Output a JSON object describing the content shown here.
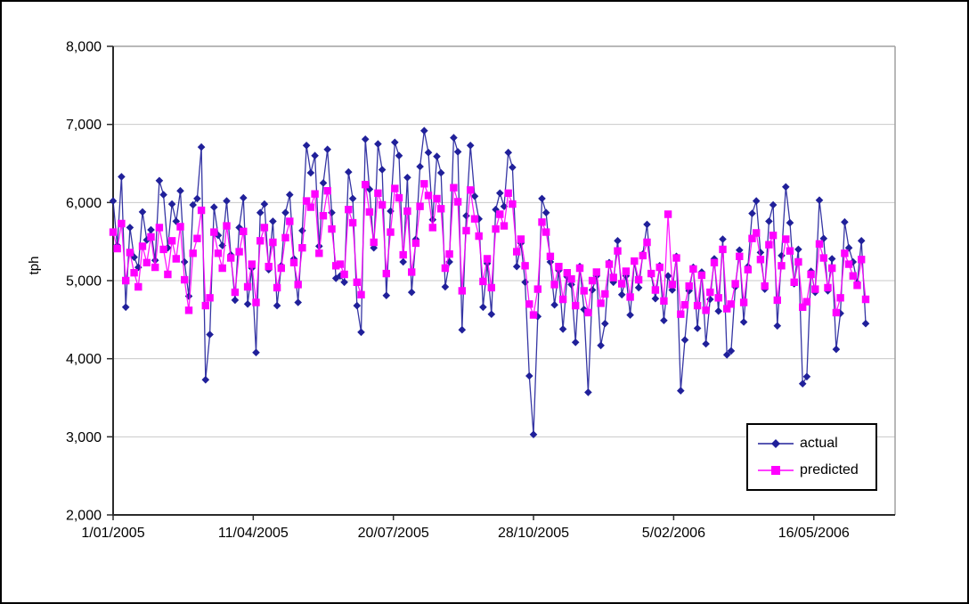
{
  "chart_data": {
    "type": "line",
    "title": "",
    "xlabel": "",
    "ylabel": "tph",
    "ylim": [
      2000,
      8000
    ],
    "y_tick_step": 1000,
    "y_tick_labels": [
      "2,000",
      "3,000",
      "4,000",
      "5,000",
      "6,000",
      "7,000",
      "8,000"
    ],
    "x_axis_days": 558,
    "x_ticks": [
      {
        "day": 0,
        "label": "1/01/2005"
      },
      {
        "day": 100,
        "label": "11/04/2005"
      },
      {
        "day": 200,
        "label": "20/07/2005"
      },
      {
        "day": 300,
        "label": "28/10/2005"
      },
      {
        "day": 400,
        "label": "5/02/2006"
      },
      {
        "day": 500,
        "label": "16/05/2006"
      }
    ],
    "grid": "horizontal",
    "legend_position": "inside-bottom-right",
    "colors": {
      "actual": "#20209A",
      "predicted": "#FF00FF",
      "gridline": "#C9C9C9",
      "axis": "#2B2B2B",
      "plot_border": "#A0A0A0",
      "text": "#000000"
    },
    "day_start": 0,
    "day_step": 3,
    "series": [
      {
        "name": "actual",
        "color": "#20209A",
        "marker": "diamond",
        "values": [
          6020,
          5450,
          6330,
          4660,
          5680,
          5300,
          5170,
          5880,
          5520,
          5650,
          5260,
          6280,
          6100,
          5420,
          5980,
          5760,
          6150,
          5240,
          4800,
          5970,
          6050,
          6710,
          3730,
          4310,
          5940,
          5580,
          5450,
          6020,
          5330,
          4750,
          5680,
          6060,
          4700,
          5160,
          4080,
          5870,
          5980,
          5140,
          5760,
          4680,
          5190,
          5870,
          6100,
          5280,
          4720,
          5640,
          6730,
          6380,
          6600,
          5440,
          6250,
          6680,
          5870,
          5030,
          5060,
          4980,
          6390,
          6050,
          4680,
          4340,
          6810,
          6170,
          5420,
          6750,
          6420,
          4810,
          5890,
          6770,
          6600,
          5240,
          6320,
          4850,
          5530,
          6460,
          6920,
          6640,
          5780,
          6590,
          6380,
          4920,
          5240,
          6830,
          6650,
          4370,
          5830,
          6730,
          6080,
          5790,
          4660,
          5220,
          4570,
          5910,
          6120,
          5950,
          6640,
          6450,
          5180,
          5480,
          4980,
          3780,
          3030,
          4540,
          6050,
          5870,
          5240,
          4690,
          5130,
          4380,
          5050,
          4950,
          4210,
          5180,
          4630,
          3570,
          4880,
          5060,
          4170,
          4450,
          5230,
          4980,
          5510,
          4820,
          5060,
          4560,
          5240,
          4910,
          5340,
          5720,
          5080,
          4770,
          5190,
          4490,
          5060,
          4880,
          5310,
          3590,
          4240,
          4870,
          5170,
          4390,
          5110,
          4190,
          4760,
          5280,
          4610,
          5530,
          4050,
          4100,
          4920,
          5390,
          4470,
          5180,
          5860,
          6020,
          5360,
          4890,
          5760,
          5970,
          4420,
          5320,
          6200,
          5740,
          4960,
          5400,
          3680,
          3770,
          5120,
          4850,
          6030,
          5540,
          4870,
          5280,
          4120,
          4580,
          5750,
          5420,
          5240,
          4970,
          5510,
          4450
        ]
      },
      {
        "name": "predicted",
        "color": "#FF00FF",
        "marker": "square",
        "values": [
          5620,
          5410,
          5730,
          5000,
          5360,
          5100,
          4920,
          5440,
          5230,
          5560,
          5170,
          5680,
          5400,
          5080,
          5510,
          5280,
          5690,
          5010,
          4620,
          5350,
          5540,
          5900,
          4680,
          4780,
          5620,
          5350,
          5160,
          5700,
          5290,
          4850,
          5370,
          5630,
          4920,
          5210,
          4720,
          5510,
          5680,
          5180,
          5490,
          4910,
          5160,
          5550,
          5760,
          5230,
          4950,
          5420,
          6020,
          5940,
          6110,
          5350,
          5830,
          6150,
          5660,
          5190,
          5210,
          5080,
          5910,
          5740,
          4980,
          4820,
          6230,
          5880,
          5490,
          6120,
          5970,
          5090,
          5620,
          6180,
          6060,
          5330,
          5890,
          5110,
          5480,
          5950,
          6240,
          6090,
          5680,
          6050,
          5920,
          5160,
          5340,
          6190,
          6010,
          4870,
          5640,
          6160,
          5790,
          5570,
          4990,
          5280,
          4910,
          5660,
          5850,
          5700,
          6120,
          5980,
          5370,
          5530,
          5190,
          4700,
          4560,
          4890,
          5750,
          5620,
          5310,
          4950,
          5180,
          4760,
          5100,
          5020,
          4680,
          5160,
          4870,
          4590,
          5000,
          5110,
          4710,
          4830,
          5210,
          5040,
          5380,
          4960,
          5120,
          4790,
          5250,
          5010,
          5320,
          5490,
          5090,
          4880,
          5170,
          4740,
          5850,
          4950,
          5290,
          4570,
          4690,
          4930,
          5150,
          4680,
          5070,
          4620,
          4850,
          5230,
          4780,
          5400,
          4640,
          4700,
          4960,
          5310,
          4720,
          5140,
          5540,
          5610,
          5270,
          4930,
          5460,
          5580,
          4750,
          5190,
          5530,
          5380,
          4980,
          5240,
          4660,
          4730,
          5080,
          4890,
          5470,
          5290,
          4910,
          5160,
          4590,
          4780,
          5350,
          5210,
          5060,
          4940,
          5270,
          4760
        ]
      }
    ]
  }
}
